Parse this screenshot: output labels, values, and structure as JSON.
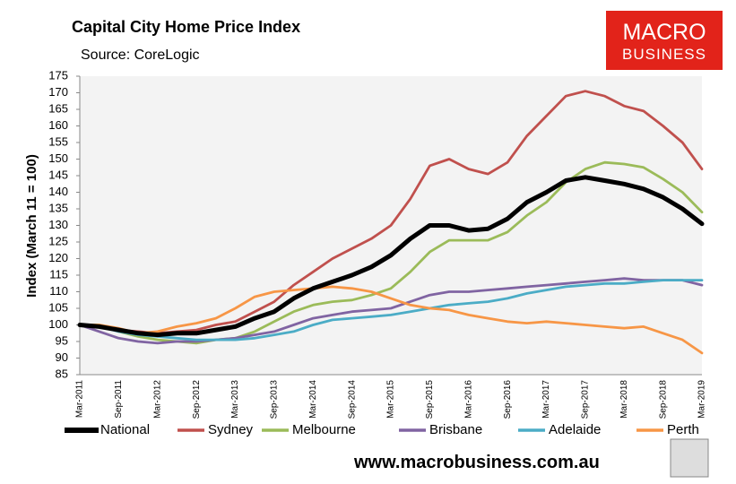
{
  "chart_data": {
    "type": "line",
    "title": "Capital City Home Price Index",
    "subtitle": "Source: CoreLogic",
    "y_label": "Index (March 11 = 100)",
    "brand": {
      "line1": "MACRO",
      "line2": "BUSINESS"
    },
    "footer": "www.macrobusiness.com.au",
    "categories": [
      "Mar-2011",
      null,
      "Sep-2011",
      null,
      "Mar-2012",
      null,
      "Sep-2012",
      null,
      "Mar-2013",
      null,
      "Sep-2013",
      null,
      "Mar-2014",
      null,
      "Sep-2014",
      null,
      "Mar-2015",
      null,
      "Sep-2015",
      null,
      "Mar-2016",
      null,
      "Sep-2016",
      null,
      "Mar-2017",
      null,
      "Sep-2017",
      null,
      "Mar-2018",
      null,
      "Sep-2018",
      null,
      "Mar-2019"
    ],
    "ylim": [
      85,
      175
    ],
    "yticks": [
      85,
      90,
      95,
      100,
      105,
      110,
      115,
      120,
      125,
      130,
      135,
      140,
      145,
      150,
      155,
      160,
      165,
      170,
      175
    ],
    "grid": false,
    "legend": "bottom",
    "series": [
      {
        "name": "National",
        "color": "#000000",
        "values": [
          100,
          99.5,
          98.5,
          97.5,
          97,
          97.5,
          97.5,
          98.5,
          99.5,
          102,
          104,
          108,
          111,
          113,
          115,
          117.5,
          121,
          126,
          130,
          130,
          128.5,
          129,
          132,
          137,
          140,
          143.5,
          144.5,
          143.5,
          142.5,
          141,
          138.5,
          135,
          130.5
        ]
      },
      {
        "name": "Sydney",
        "color": "#c0504d",
        "values": [
          100,
          99.5,
          98.5,
          98,
          97.5,
          98,
          98.5,
          100,
          101,
          104,
          107,
          112,
          116,
          120,
          123,
          126,
          130,
          138,
          148,
          150,
          147,
          145.5,
          149,
          157,
          163,
          169,
          170.5,
          169,
          166,
          164.5,
          160,
          155,
          147
        ]
      },
      {
        "name": "Melbourne",
        "color": "#9bbb59",
        "values": [
          100,
          100,
          98,
          96.5,
          95.5,
          95,
          94.5,
          95.5,
          96,
          98,
          101,
          104,
          106,
          107,
          107.5,
          109,
          111,
          116,
          122,
          125.5,
          125.5,
          125.5,
          128,
          133,
          137,
          143,
          147,
          149,
          148.5,
          147.5,
          144,
          140,
          134
        ]
      },
      {
        "name": "Brisbane",
        "color": "#8064a2",
        "values": [
          100,
          98,
          96,
          95,
          94.5,
          95,
          95,
          95.5,
          96,
          97,
          98,
          100,
          102,
          103,
          104,
          104.5,
          105,
          107,
          109,
          110,
          110,
          110.5,
          111,
          111.5,
          112,
          112.5,
          113,
          113.5,
          114,
          113.5,
          113.5,
          113.5,
          112
        ]
      },
      {
        "name": "Adelaide",
        "color": "#4bacc6",
        "values": [
          100,
          99.5,
          98,
          97,
          96.5,
          96,
          95.5,
          95.5,
          95.5,
          96,
          97,
          98,
          100,
          101.5,
          102,
          102.5,
          103,
          104,
          105,
          106,
          106.5,
          107,
          108,
          109.5,
          110.5,
          111.5,
          112,
          112.5,
          112.5,
          113,
          113.5,
          113.5,
          113.5
        ]
      },
      {
        "name": "Perth",
        "color": "#f79646",
        "values": [
          100,
          100,
          99,
          97.5,
          98,
          99.5,
          100.5,
          102,
          105,
          108.5,
          110,
          110.5,
          111,
          111.5,
          111,
          110,
          108,
          106,
          105,
          104.5,
          103,
          102,
          101,
          100.5,
          101,
          100.5,
          100,
          99.5,
          99,
          99.5,
          97.5,
          95.5,
          91.5
        ]
      }
    ]
  }
}
